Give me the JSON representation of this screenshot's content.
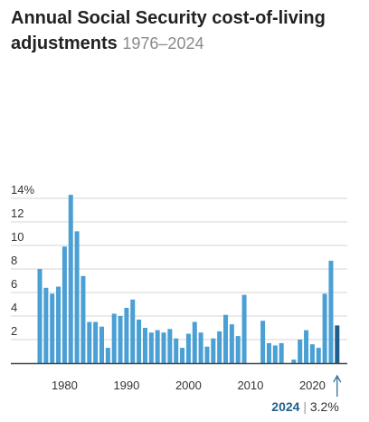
{
  "title": {
    "main": "Annual Social Security cost-of-living adjustments",
    "sub": "1976–2024"
  },
  "colors": {
    "bar": "#4a9fd4",
    "highlight": "#1f5f8e",
    "grid": "#d4d4d4",
    "baseline": "#444444"
  },
  "chart_data": {
    "type": "bar",
    "title": "Annual Social Security cost-of-living adjustments",
    "subtitle": "1976–2024",
    "x": [
      1976,
      1977,
      1978,
      1979,
      1980,
      1981,
      1982,
      1983,
      1984,
      1985,
      1986,
      1987,
      1988,
      1989,
      1990,
      1991,
      1992,
      1993,
      1994,
      1995,
      1996,
      1997,
      1998,
      1999,
      2000,
      2001,
      2002,
      2003,
      2004,
      2005,
      2006,
      2007,
      2008,
      2009,
      2010,
      2011,
      2012,
      2013,
      2014,
      2015,
      2016,
      2017,
      2018,
      2019,
      2020,
      2021,
      2022,
      2023,
      2024
    ],
    "values": [
      8.0,
      6.4,
      5.9,
      6.5,
      9.9,
      14.3,
      11.2,
      7.4,
      3.5,
      3.5,
      3.1,
      1.3,
      4.2,
      4.0,
      4.7,
      5.4,
      3.7,
      3.0,
      2.6,
      2.8,
      2.6,
      2.9,
      2.1,
      1.3,
      2.5,
      3.5,
      2.6,
      1.4,
      2.1,
      2.7,
      4.1,
      3.3,
      2.3,
      5.8,
      0,
      0,
      3.6,
      1.7,
      1.5,
      1.7,
      0,
      0.3,
      2.0,
      2.8,
      1.6,
      1.3,
      5.9,
      8.7,
      3.2
    ],
    "y_ticks": [
      2,
      4,
      6,
      8,
      10,
      12,
      14
    ],
    "y_tick_labels": [
      "2",
      "4",
      "6",
      "8",
      "10",
      "12",
      "14%"
    ],
    "x_ticks": [
      1980,
      1990,
      2000,
      2010,
      2020
    ],
    "ylim": [
      0,
      15
    ],
    "xlabel": "",
    "ylabel": "",
    "grid": true,
    "highlight": {
      "year": 2024,
      "year_label": "2024",
      "separator": "|",
      "value_label": "3.2%"
    }
  }
}
